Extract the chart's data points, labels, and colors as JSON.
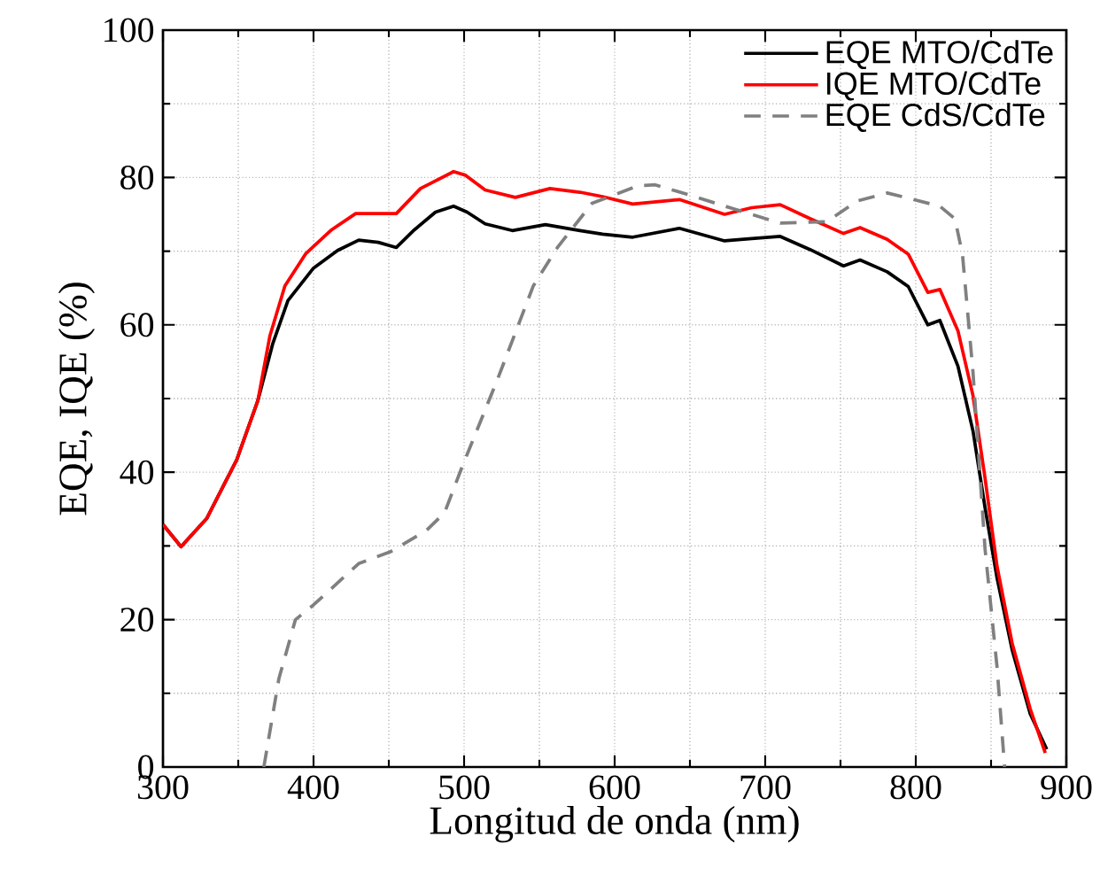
{
  "chart_data": {
    "type": "line",
    "xlabel": "Longitud de onda (nm)",
    "ylabel": "EQE, IQE (%)",
    "xlim": [
      300,
      900
    ],
    "ylim": [
      0,
      100
    ],
    "xticks": [
      300,
      400,
      500,
      600,
      700,
      800,
      900
    ],
    "yticks": [
      0,
      20,
      40,
      60,
      80,
      100
    ],
    "grid": true,
    "legend": "top right",
    "series": [
      {
        "name": "EQE MTO/CdTe",
        "color": "#000000",
        "line_style": "solid",
        "x": [
          300,
          312,
          329,
          349,
          363,
          373,
          383,
          400,
          416,
          430,
          443,
          455,
          467,
          481,
          493,
          502,
          514,
          532,
          554,
          577,
          592,
          612,
          643,
          673,
          691,
          710,
          730,
          752,
          763,
          781,
          795,
          808,
          816,
          828,
          838,
          846,
          854,
          864,
          876,
          887
        ],
        "values": [
          32.9,
          29.9,
          33.7,
          41.7,
          49.7,
          57.5,
          63.3,
          67.7,
          70.1,
          71.5,
          71.2,
          70.5,
          72.9,
          75.3,
          76.1,
          75.3,
          73.7,
          72.8,
          73.6,
          72.8,
          72.3,
          71.9,
          73.1,
          71.4,
          71.7,
          72.0,
          70.2,
          68.0,
          68.8,
          67.2,
          65.2,
          60.0,
          60.6,
          54.4,
          45.6,
          35.2,
          25.6,
          15.9,
          7.2,
          2.4
        ]
      },
      {
        "name": "IQE MTO/CdTe",
        "color": "#ff0000",
        "line_style": "solid",
        "x": [
          300,
          312,
          329,
          349,
          363,
          371,
          381,
          395,
          412,
          428,
          455,
          471,
          493,
          501,
          514,
          534,
          557,
          577,
          592,
          612,
          643,
          673,
          691,
          710,
          730,
          752,
          763,
          781,
          795,
          808,
          816,
          828,
          838,
          846,
          854,
          864,
          876,
          886
        ],
        "values": [
          32.9,
          29.9,
          33.7,
          41.7,
          49.7,
          58.5,
          65.3,
          69.7,
          72.9,
          75.1,
          75.1,
          78.5,
          80.8,
          80.3,
          78.3,
          77.3,
          78.5,
          78.0,
          77.4,
          76.4,
          77.0,
          75.0,
          75.9,
          76.3,
          74.4,
          72.4,
          73.2,
          71.6,
          69.6,
          64.4,
          64.8,
          59.2,
          50.4,
          39.2,
          27.2,
          16.8,
          7.9,
          1.9
        ]
      },
      {
        "name": "EQE CdS/CdTe",
        "color": "#808080",
        "line_style": "dashed",
        "x": [
          367,
          377,
          388,
          400,
          430,
          451,
          475,
          487,
          499,
          522,
          546,
          562,
          585,
          616,
          627,
          650,
          678,
          710,
          741,
          761,
          781,
          795,
          816,
          826,
          831,
          838,
          846,
          854,
          859
        ],
        "values": [
          0,
          12.0,
          20.0,
          22.0,
          27.6,
          29.2,
          32.1,
          34.5,
          40.9,
          52.5,
          65.3,
          70.5,
          76.5,
          78.9,
          79.0,
          77.6,
          75.8,
          73.8,
          74.0,
          76.8,
          77.9,
          77.2,
          76.1,
          74.4,
          69.6,
          53.6,
          29.6,
          13.5,
          0
        ]
      }
    ]
  }
}
